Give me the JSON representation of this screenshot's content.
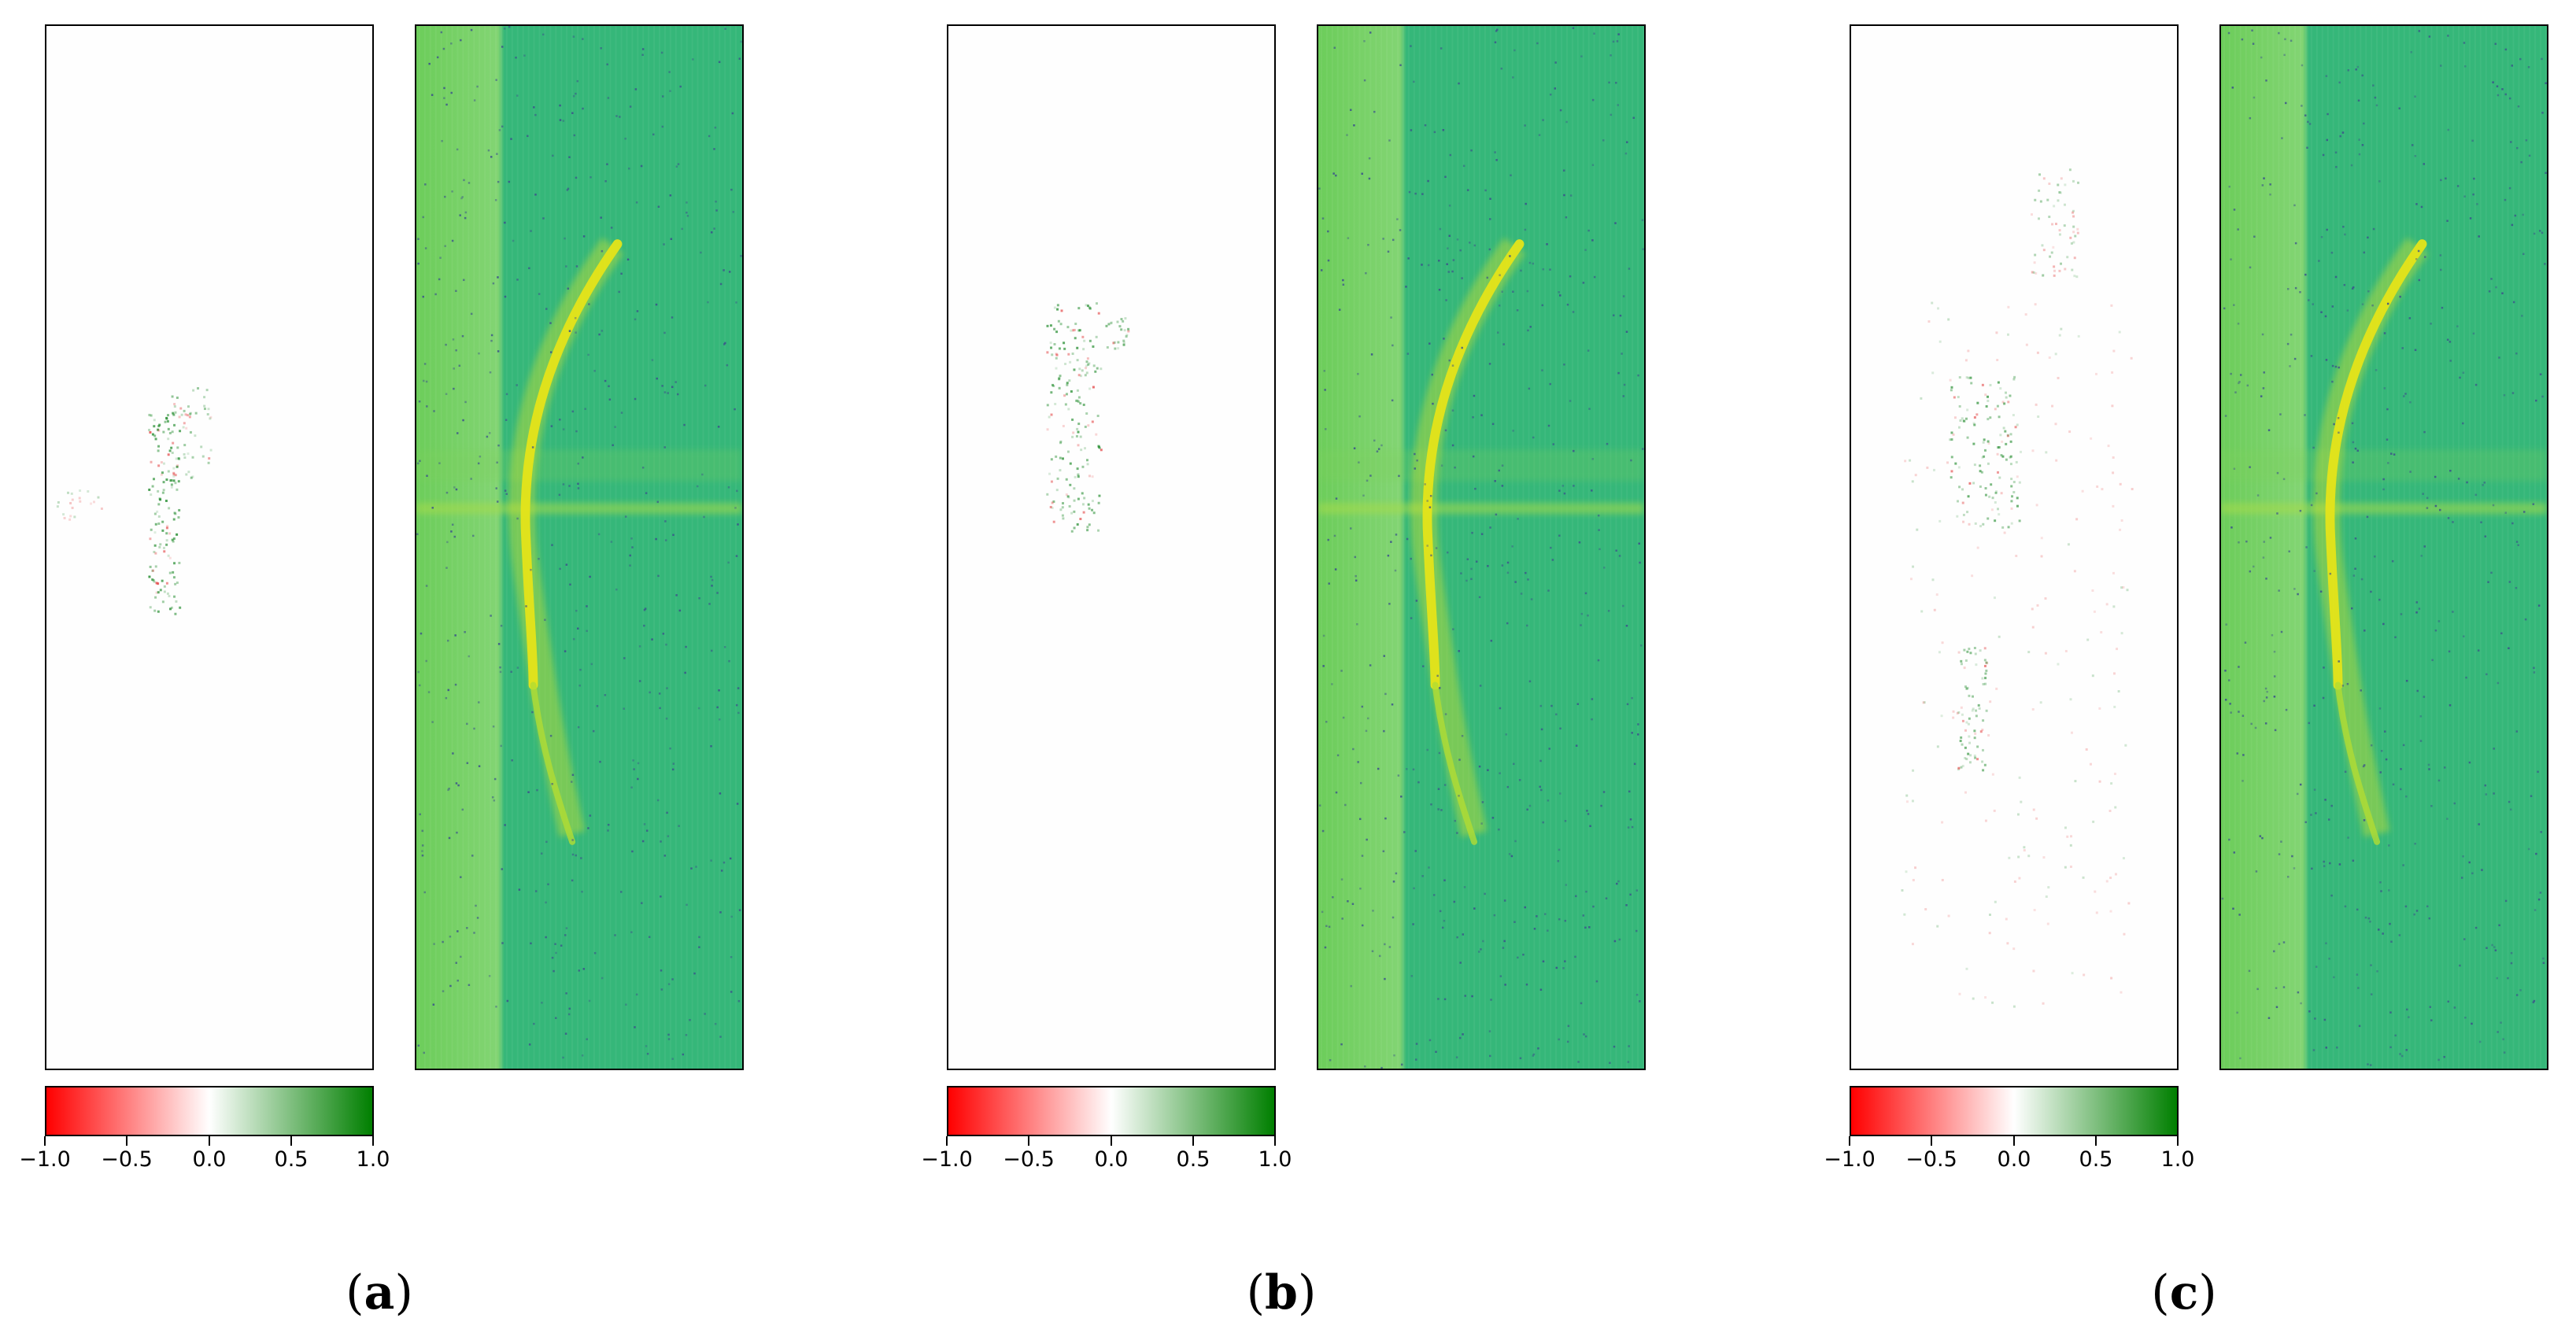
{
  "panels": [
    {
      "caption_open": "(",
      "caption_letter": "a",
      "caption_close": ")",
      "attribution_map": "attribution-map",
      "spectrogram": "spectrogram"
    },
    {
      "caption_open": "(",
      "caption_letter": "b",
      "caption_close": ")",
      "attribution_map": "attribution-map",
      "spectrogram": "spectrogram"
    },
    {
      "caption_open": "(",
      "caption_letter": "c",
      "caption_close": ")",
      "attribution_map": "attribution-map",
      "spectrogram": "spectrogram"
    }
  ],
  "colorbar": {
    "range": [
      -1.0,
      1.0
    ],
    "tick_labels": [
      "−1.0",
      "−0.5",
      "0.0",
      "0.5",
      "1.0"
    ],
    "colors": {
      "negative": "#ff0000",
      "zero": "#ffffff",
      "positive": "#007f00"
    }
  },
  "spectrogram_colors": {
    "background": "#35b779",
    "band": "#6ccd5a",
    "arc": "#e5e419",
    "noise_dots": "#3b528b"
  }
}
